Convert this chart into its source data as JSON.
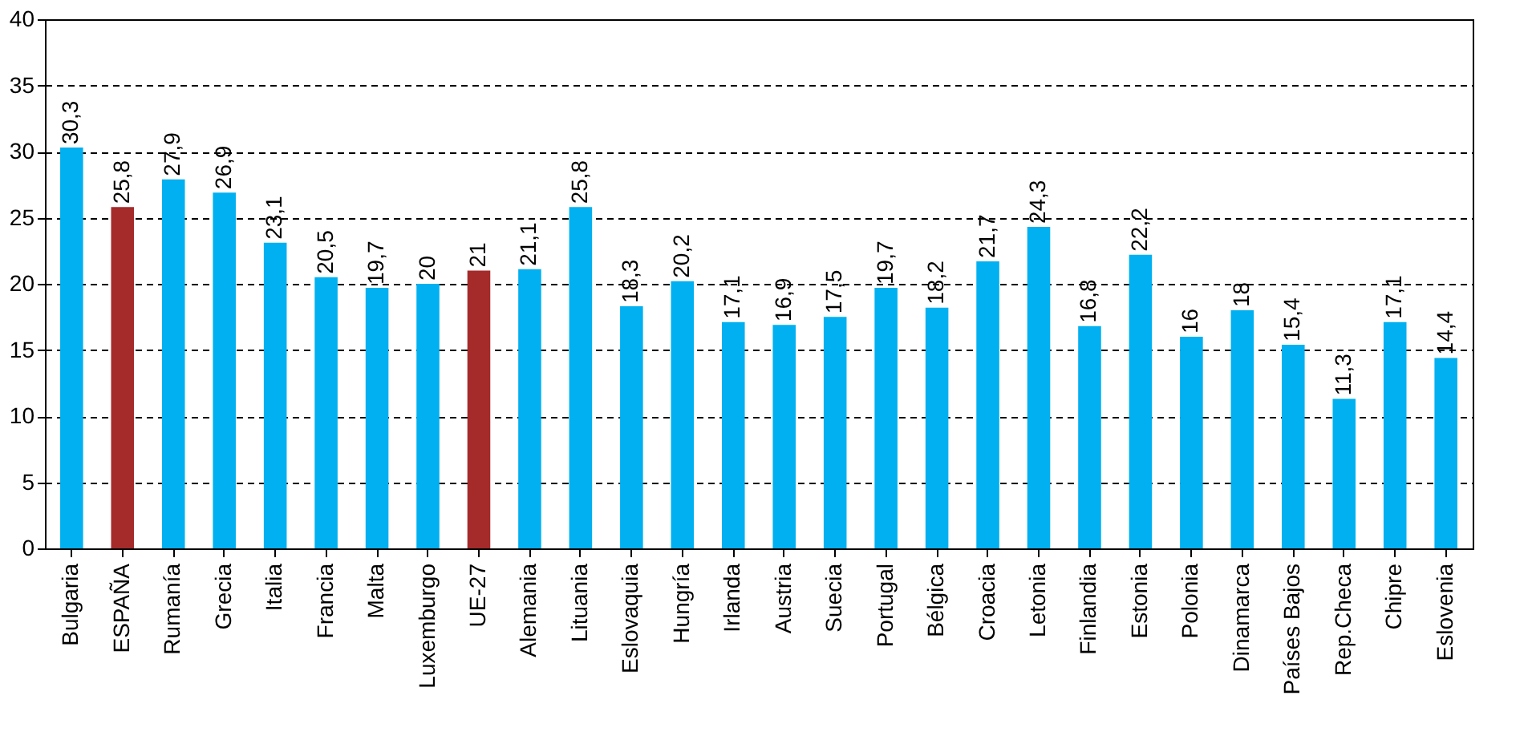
{
  "chart_data": {
    "type": "bar",
    "categories": [
      "Bulgaria",
      "ESPAÑA",
      "Rumanía",
      "Grecia",
      "Italia",
      "Francia",
      "Malta",
      "Luxemburgo",
      "UE-27",
      "Alemania",
      "Lituania",
      "Eslovaquia",
      "Hungría",
      "Irlanda",
      "Austria",
      "Suecia",
      "Portugal",
      "Bélgica",
      "Croacia",
      "Letonia",
      "Finlandia",
      "Estonia",
      "Polonia",
      "Dinamarca",
      "Países Bajos",
      "Rep.Checa",
      "Chipre",
      "Eslovenia"
    ],
    "values": [
      30.3,
      25.8,
      27.9,
      26.9,
      23.1,
      20.5,
      19.7,
      20,
      21,
      21.1,
      25.8,
      18.3,
      20.2,
      17.1,
      16.9,
      17.5,
      19.7,
      18.2,
      21.7,
      24.3,
      16.8,
      22.2,
      16,
      18,
      15.4,
      11.3,
      17.1,
      14.4
    ],
    "value_labels": [
      "30,3",
      "25,8",
      "27,9",
      "26,9",
      "23,1",
      "20,5",
      "19,7",
      "20",
      "21",
      "21,1",
      "25,8",
      "18,3",
      "20,2",
      "17,1",
      "16,9",
      "17,5",
      "19,7",
      "18,2",
      "21,7",
      "24,3",
      "16,8",
      "22,2",
      "16",
      "18",
      "15,4",
      "11,3",
      "17,1",
      "14,4"
    ],
    "colors": [
      "#00b0f0",
      "#a52a2a",
      "#00b0f0",
      "#00b0f0",
      "#00b0f0",
      "#00b0f0",
      "#00b0f0",
      "#00b0f0",
      "#a52a2a",
      "#00b0f0",
      "#00b0f0",
      "#00b0f0",
      "#00b0f0",
      "#00b0f0",
      "#00b0f0",
      "#00b0f0",
      "#00b0f0",
      "#00b0f0",
      "#00b0f0",
      "#00b0f0",
      "#00b0f0",
      "#00b0f0",
      "#00b0f0",
      "#00b0f0",
      "#00b0f0",
      "#00b0f0",
      "#00b0f0",
      "#00b0f0"
    ],
    "ylim": [
      0,
      40
    ],
    "yticks": [
      0,
      5,
      10,
      15,
      20,
      25,
      30,
      35,
      40
    ],
    "grid": "y"
  }
}
